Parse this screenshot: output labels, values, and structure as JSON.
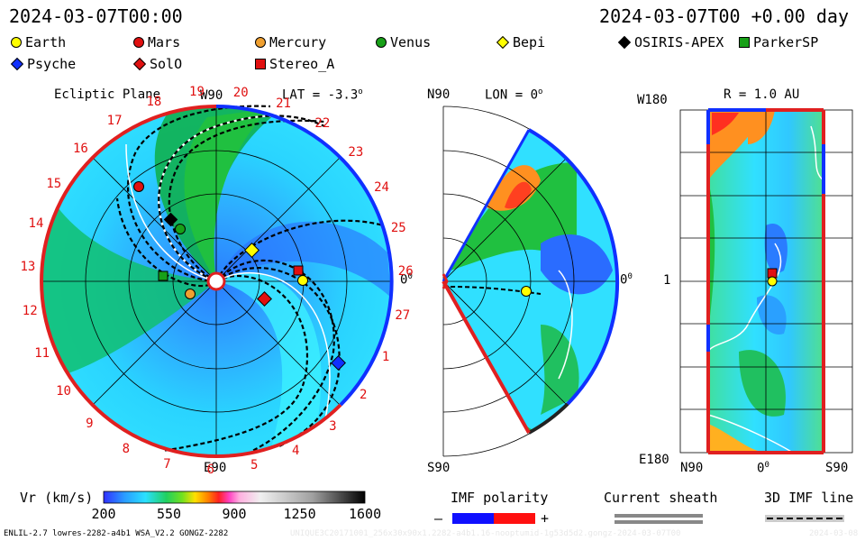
{
  "header": {
    "date_left": "2024-03-07T00:00",
    "date_right": "2024-03-07T00 +0.00 day"
  },
  "legend": [
    {
      "label": "Earth",
      "color": "#ffff00",
      "shape": "circle"
    },
    {
      "label": "Mars",
      "color": "#e01010",
      "shape": "circle"
    },
    {
      "label": "Mercury",
      "color": "#f0a030",
      "shape": "circle"
    },
    {
      "label": "Venus",
      "color": "#18a018",
      "shape": "circle"
    },
    {
      "label": "Bepi",
      "color": "#ffff00",
      "shape": "diamond"
    },
    {
      "label": "OSIRIS-APEX",
      "color": "#000000",
      "shape": "diamond"
    },
    {
      "label": "ParkerSP",
      "color": "#18a018",
      "shape": "square"
    },
    {
      "label": "Psyche",
      "color": "#1030ff",
      "shape": "diamond"
    },
    {
      "label": "SolO",
      "color": "#e01010",
      "shape": "diamond"
    },
    {
      "label": "Stereo_A",
      "color": "#e01010",
      "shape": "square"
    }
  ],
  "ecliptic": {
    "title": "Ecliptic Plane",
    "top_label": "W90",
    "bottom_label": "E90",
    "right_label": "0",
    "lat_label": "LAT = -3.3",
    "lat_sup": "o",
    "right_sup": "0",
    "carrington": [
      "19",
      "20",
      "21",
      "22",
      "23",
      "24",
      "25",
      "26",
      "27",
      "1",
      "2",
      "3",
      "4",
      "5",
      "6",
      "7",
      "8",
      "9",
      "10",
      "11",
      "12",
      "13",
      "14",
      "15",
      "16",
      "17",
      "18"
    ]
  },
  "meridional": {
    "top_label": "N90",
    "bottom_label": "S90",
    "lon_label": "LON = 0",
    "lon_sup": "o",
    "right_label": "0",
    "right_sup": "0"
  },
  "map": {
    "title": "R = 1.0 AU",
    "y_top": "W180",
    "y_mid": "1",
    "y_bottom": "E180",
    "x_left": "N90",
    "x_mid": "0",
    "x_mid_sup": "0",
    "x_right": "S90"
  },
  "colorbar": {
    "label": "Vr (km/s)",
    "ticks": [
      "200",
      "550",
      "900",
      "1250",
      "1600"
    ]
  },
  "imf": {
    "label": "IMF polarity",
    "minus": "–",
    "plus": "+",
    "colors": {
      "negative": "#1010ff",
      "positive": "#ff1010"
    }
  },
  "sheath": {
    "label": "Current sheath"
  },
  "imf3d": {
    "label": "3D IMF line"
  },
  "footer": {
    "left": "ENLIL-2.7 lowres-2282-a4b1 WSA_V2.2 GONGZ-2282",
    "right": "UNIQUE3C20171001_256x30x90x1.2282-a4b1.16-nooptumid-1g53d5d2.gongz-2024-03-07T00",
    "far_right": "2024-03-08"
  }
}
